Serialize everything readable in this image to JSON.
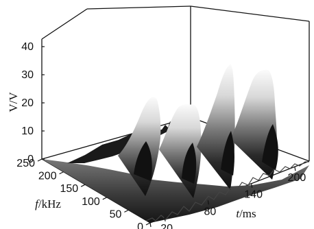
{
  "chart_data": {
    "type": "surface-3d",
    "title": "",
    "axes": {
      "x": {
        "label_var": "t",
        "label_unit": "/ms",
        "ticks": [
          "0",
          "20",
          "80",
          "140",
          "200"
        ],
        "tick_values": [
          0,
          20,
          80,
          140,
          200
        ],
        "range": [
          0,
          220
        ]
      },
      "y": {
        "label_var": "f",
        "label_unit": "/kHz",
        "ticks": [
          "250",
          "200",
          "150",
          "100",
          "50",
          "0"
        ],
        "tick_values": [
          250,
          200,
          150,
          100,
          50,
          0
        ],
        "range": [
          0,
          250
        ]
      },
      "z": {
        "label": "V/V",
        "ticks": [
          "0",
          "10",
          "20",
          "30",
          "40"
        ],
        "tick_values": [
          0,
          10,
          20,
          30,
          40
        ],
        "range": [
          0,
          40
        ]
      }
    },
    "peaks": [
      {
        "t": 95,
        "f_center": 110,
        "V": 20
      },
      {
        "t": 130,
        "f_center": 115,
        "V": 20
      },
      {
        "t": 165,
        "f_center": 105,
        "V": 34
      },
      {
        "t": 200,
        "f_center": 110,
        "V": 34
      }
    ]
  }
}
